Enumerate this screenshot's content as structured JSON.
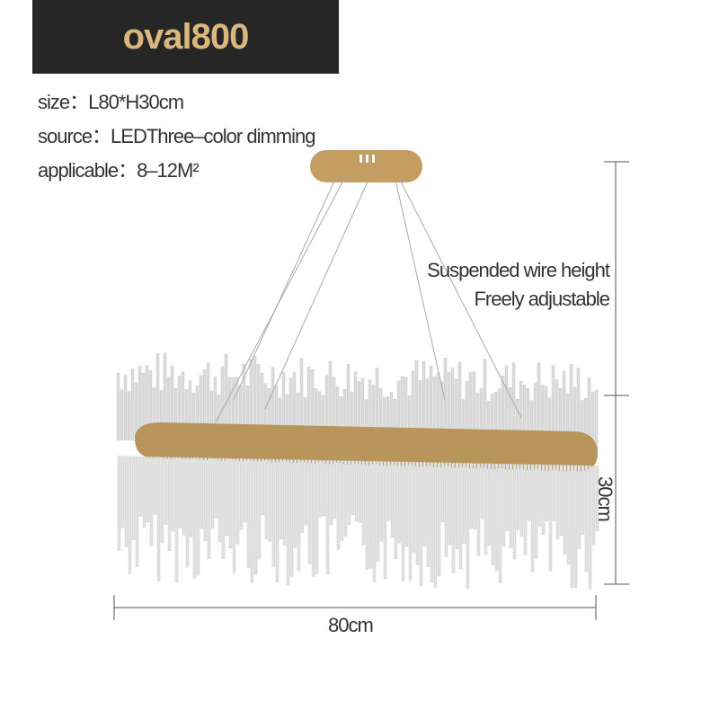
{
  "banner": {
    "title": "oval800"
  },
  "specs": {
    "size": "size：L80*H30cm",
    "source": "source：LEDThree–color dimming",
    "applicable": "applicable：8–12M²"
  },
  "note": {
    "line1": "Suspended wire height",
    "line2": "Freely adjustable"
  },
  "dimensions": {
    "width": "80cm",
    "height": "30cm"
  },
  "colors": {
    "banner_bg": "#262626",
    "banner_text": "#d9b77e",
    "frame_gold": "#b8955a"
  }
}
